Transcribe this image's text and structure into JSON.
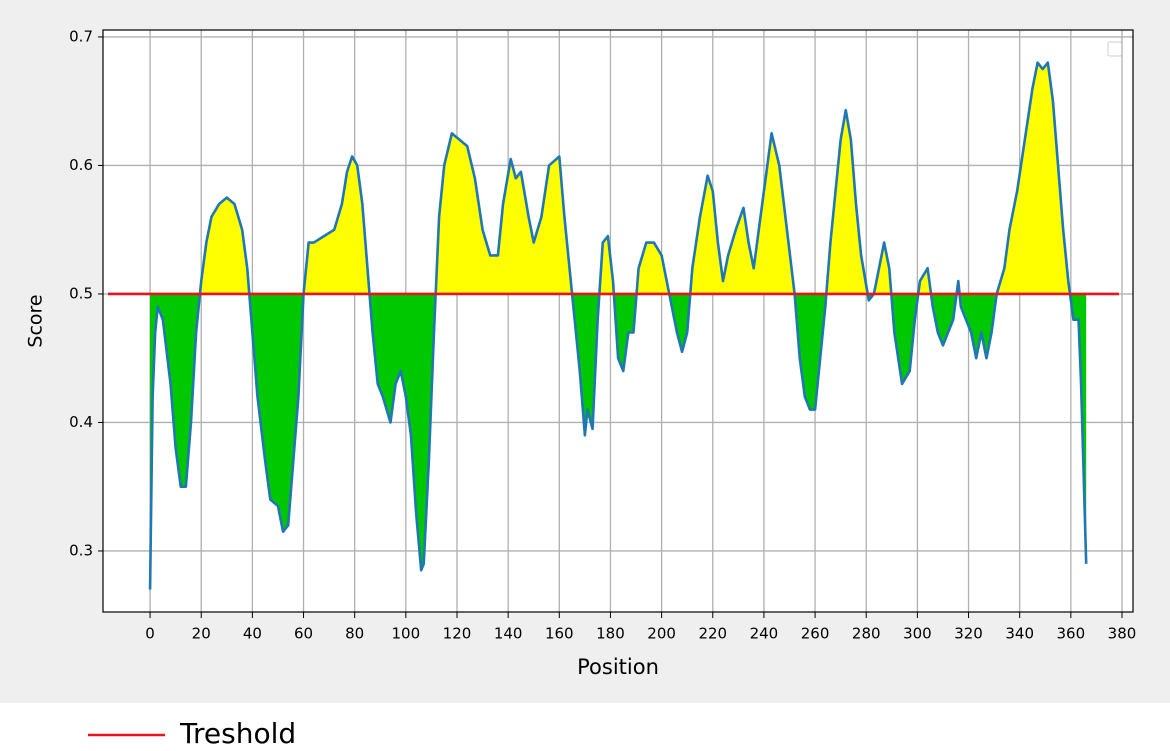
{
  "chart_data": {
    "type": "threshold-line",
    "xlabel": "Position",
    "ylabel": "Score",
    "x": [
      0,
      1,
      2,
      3,
      5,
      8,
      10,
      12,
      14,
      16,
      18,
      20,
      22,
      24,
      27,
      30,
      33,
      36,
      38,
      40,
      42,
      45,
      47,
      50,
      52,
      54,
      56,
      58,
      60,
      62,
      64,
      68,
      72,
      75,
      77,
      79,
      81,
      83,
      85,
      87,
      89,
      91,
      94,
      96,
      98,
      100,
      102,
      104,
      106,
      107,
      109,
      111,
      113,
      115,
      118,
      121,
      124,
      127,
      130,
      133,
      136,
      138,
      141,
      143,
      145,
      148,
      150,
      153,
      156,
      160,
      162,
      164,
      166,
      168,
      170,
      171,
      173,
      175,
      177,
      179,
      181,
      183,
      185,
      187,
      189,
      191,
      194,
      197,
      200,
      203,
      206,
      208,
      210,
      212,
      215,
      218,
      220,
      222,
      224,
      226,
      229,
      232,
      234,
      236,
      238,
      240,
      243,
      246,
      249,
      252,
      254,
      256,
      258,
      260,
      262,
      264,
      266,
      268,
      270,
      272,
      274,
      276,
      278,
      281,
      283,
      285,
      287,
      289,
      291,
      294,
      297,
      299,
      301,
      304,
      306,
      308,
      310,
      312,
      314,
      316,
      317,
      319,
      321,
      323,
      325,
      327,
      329,
      331,
      334,
      336,
      339,
      342,
      345,
      347,
      349,
      351,
      353,
      355,
      357,
      359,
      361,
      363,
      364,
      366
    ],
    "values": [
      0.27,
      0.42,
      0.47,
      0.49,
      0.48,
      0.43,
      0.38,
      0.35,
      0.35,
      0.4,
      0.47,
      0.51,
      0.54,
      0.56,
      0.57,
      0.575,
      0.57,
      0.55,
      0.52,
      0.47,
      0.42,
      0.37,
      0.34,
      0.335,
      0.315,
      0.32,
      0.37,
      0.42,
      0.5,
      0.54,
      0.54,
      0.545,
      0.55,
      0.57,
      0.595,
      0.607,
      0.6,
      0.57,
      0.52,
      0.47,
      0.43,
      0.42,
      0.4,
      0.43,
      0.44,
      0.42,
      0.39,
      0.33,
      0.285,
      0.29,
      0.37,
      0.47,
      0.56,
      0.6,
      0.625,
      0.62,
      0.615,
      0.59,
      0.55,
      0.53,
      0.53,
      0.57,
      0.605,
      0.59,
      0.595,
      0.56,
      0.54,
      0.56,
      0.6,
      0.607,
      0.56,
      0.52,
      0.48,
      0.44,
      0.39,
      0.41,
      0.395,
      0.48,
      0.54,
      0.545,
      0.51,
      0.45,
      0.44,
      0.47,
      0.47,
      0.52,
      0.54,
      0.54,
      0.53,
      0.5,
      0.47,
      0.455,
      0.47,
      0.52,
      0.56,
      0.592,
      0.58,
      0.54,
      0.51,
      0.53,
      0.55,
      0.567,
      0.54,
      0.52,
      0.55,
      0.58,
      0.625,
      0.6,
      0.55,
      0.5,
      0.45,
      0.42,
      0.41,
      0.41,
      0.45,
      0.49,
      0.54,
      0.58,
      0.62,
      0.643,
      0.62,
      0.57,
      0.53,
      0.495,
      0.5,
      0.52,
      0.54,
      0.52,
      0.47,
      0.43,
      0.44,
      0.48,
      0.51,
      0.52,
      0.49,
      0.47,
      0.46,
      0.47,
      0.48,
      0.51,
      0.49,
      0.48,
      0.47,
      0.45,
      0.47,
      0.45,
      0.47,
      0.5,
      0.52,
      0.55,
      0.58,
      0.62,
      0.66,
      0.68,
      0.675,
      0.68,
      0.65,
      0.6,
      0.55,
      0.51,
      0.48,
      0.48,
      0.43,
      0.29
    ],
    "line_color": "#1f77b4",
    "above_color": "#ffff00",
    "below_color": "#00c800",
    "threshold": {
      "value": 0.5,
      "name": "Treshold",
      "color": "#e8141a"
    },
    "xlim": [
      -18.4,
      384.3
    ],
    "ylim": [
      0.2525,
      0.7054
    ],
    "xticks": [
      0,
      20,
      40,
      60,
      80,
      100,
      120,
      140,
      160,
      180,
      200,
      220,
      240,
      260,
      280,
      300,
      320,
      340,
      360,
      380
    ],
    "yticks": [
      0.3,
      0.4,
      0.5,
      0.6,
      0.7
    ],
    "grid": true
  }
}
